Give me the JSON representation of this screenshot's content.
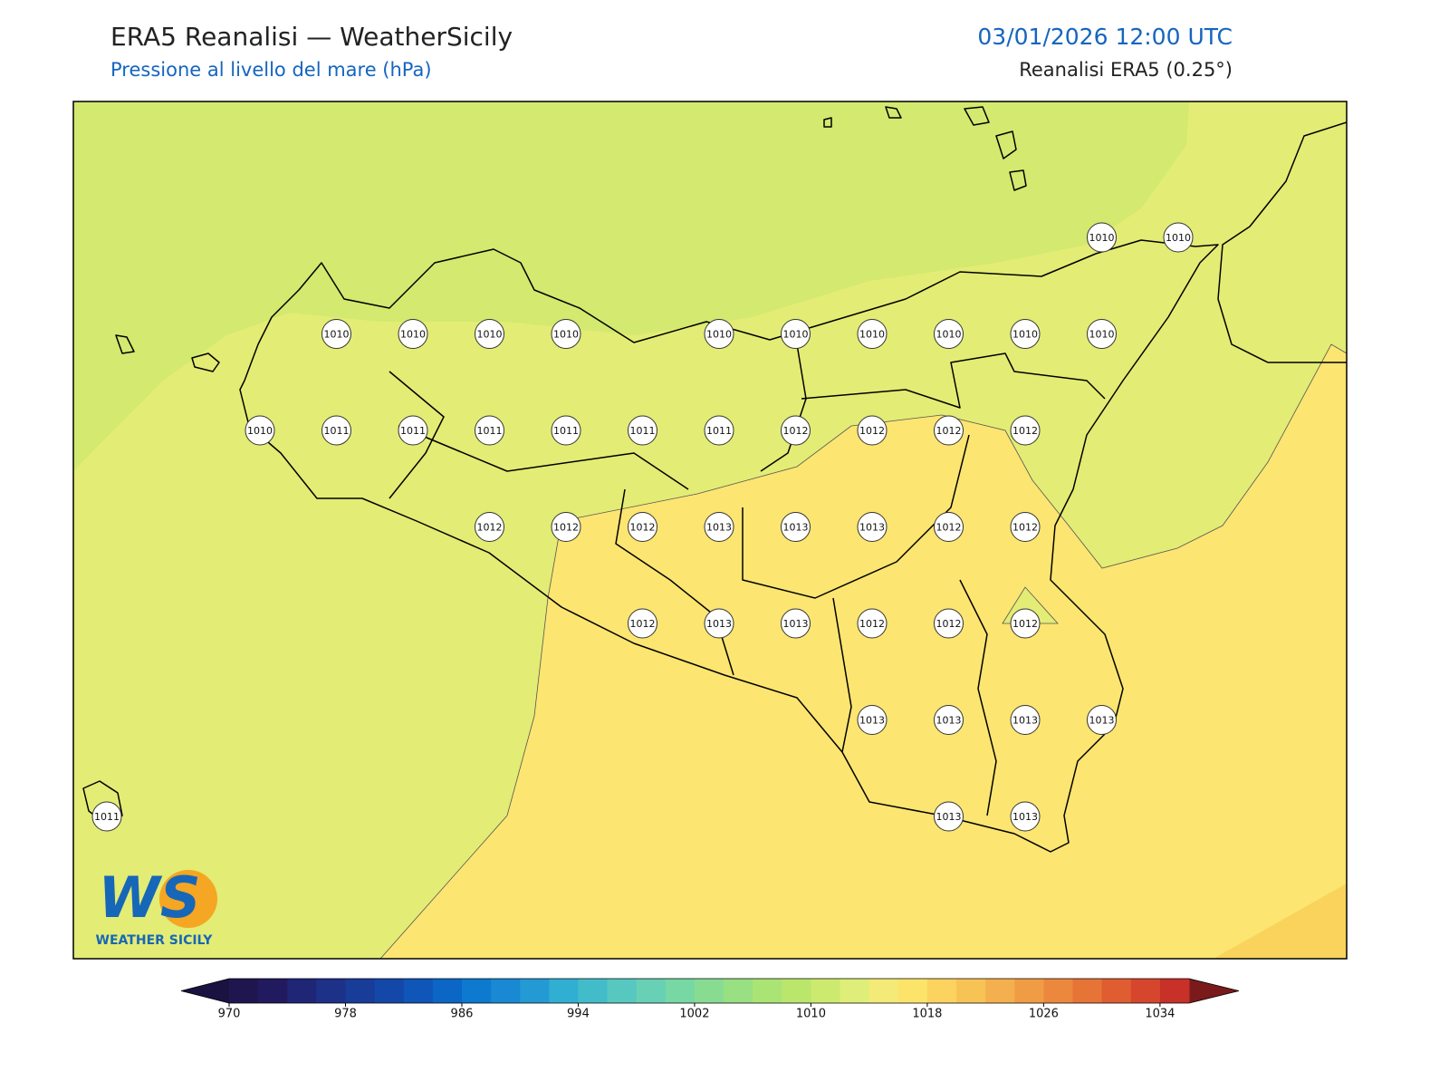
{
  "header": {
    "title": "ERA5 Reanalisi — WeatherSicily",
    "subtitle": "Pressione al livello del mare (hPa)",
    "datetime": "03/01/2026 12:00 UTC",
    "source": "Reanalisi ERA5 (0.25°)"
  },
  "stations": [
    1010,
    1010,
    1010,
    1010,
    1010,
    1010,
    1010,
    1010,
    1010,
    1010,
    1010,
    1010,
    1010,
    1011,
    1011,
    1011,
    1011,
    1011,
    1011,
    1012,
    1012,
    1012,
    1012,
    1012,
    1012,
    1012,
    1013,
    1013,
    1013,
    1012,
    1012,
    1012,
    1013,
    1013,
    1012,
    1012,
    1012,
    1013,
    1013,
    1013,
    1013,
    1011,
    1013,
    1013
  ],
  "colorbar": {
    "lim": [
      970,
      1036
    ],
    "ticks": [
      970,
      978,
      986,
      994,
      1002,
      1010,
      1018,
      1026,
      1034
    ],
    "under": "#1a1240",
    "over": "#7a1a1a",
    "colors": [
      "#1f1650",
      "#221a5e",
      "#1f2676",
      "#1d3188",
      "#183d98",
      "#1448a8",
      "#1055b8",
      "#0b66c6",
      "#0d79cf",
      "#1889d2",
      "#239ad3",
      "#31afd3",
      "#43bcca",
      "#57c8c0",
      "#67d0b5",
      "#77d8a4",
      "#88dc92",
      "#98e082",
      "#aae474",
      "#bbe66c",
      "#ccea6e",
      "#dfee78",
      "#f3ea77",
      "#fce46b",
      "#fbd35e",
      "#f8c355",
      "#f4b04e",
      "#f09c45",
      "#ec883d",
      "#e67436",
      "#e05d31",
      "#d6462c",
      "#c73128"
    ]
  },
  "logo": {
    "mark": "WS",
    "text": "WEATHER SICILY"
  }
}
